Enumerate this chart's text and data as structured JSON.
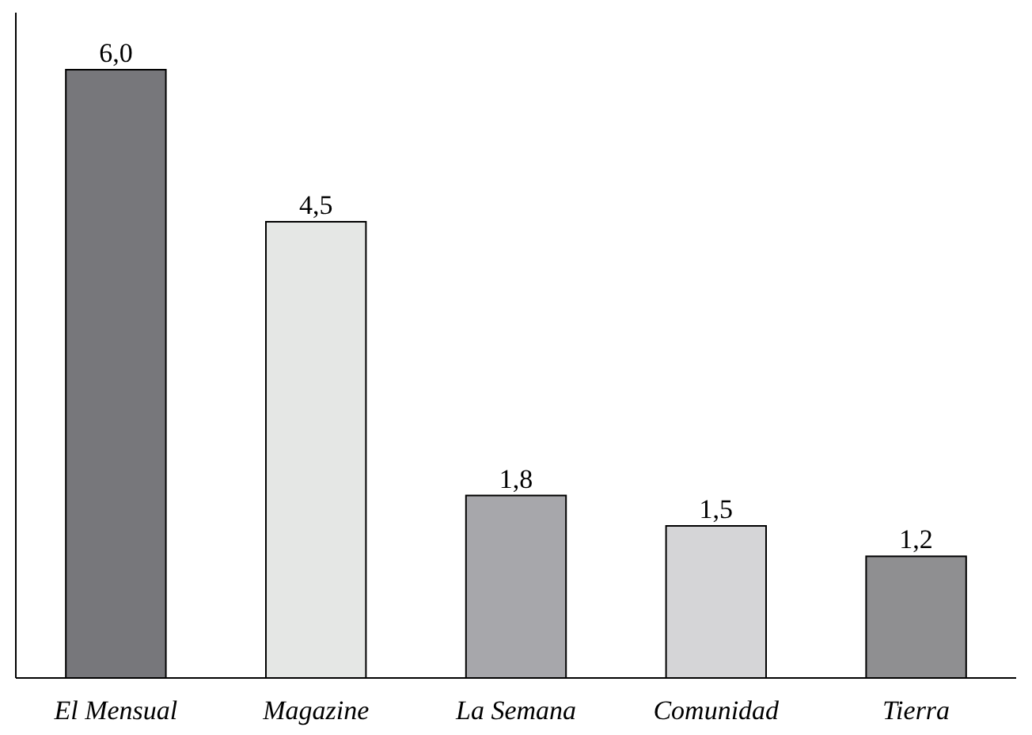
{
  "chart_data": {
    "type": "bar",
    "categories": [
      "El Mensual",
      "Magazine",
      "La Semana",
      "Comunidad",
      "Tierra"
    ],
    "values": [
      6.0,
      4.5,
      1.8,
      1.5,
      1.2
    ],
    "colors": [
      "#77777b",
      "#e5e7e5",
      "#a7a7ab",
      "#d5d5d7",
      "#8f8f91"
    ],
    "value_labels": [
      "6,0",
      "4,5",
      "1,8",
      "1,5",
      "1,2"
    ]
  }
}
